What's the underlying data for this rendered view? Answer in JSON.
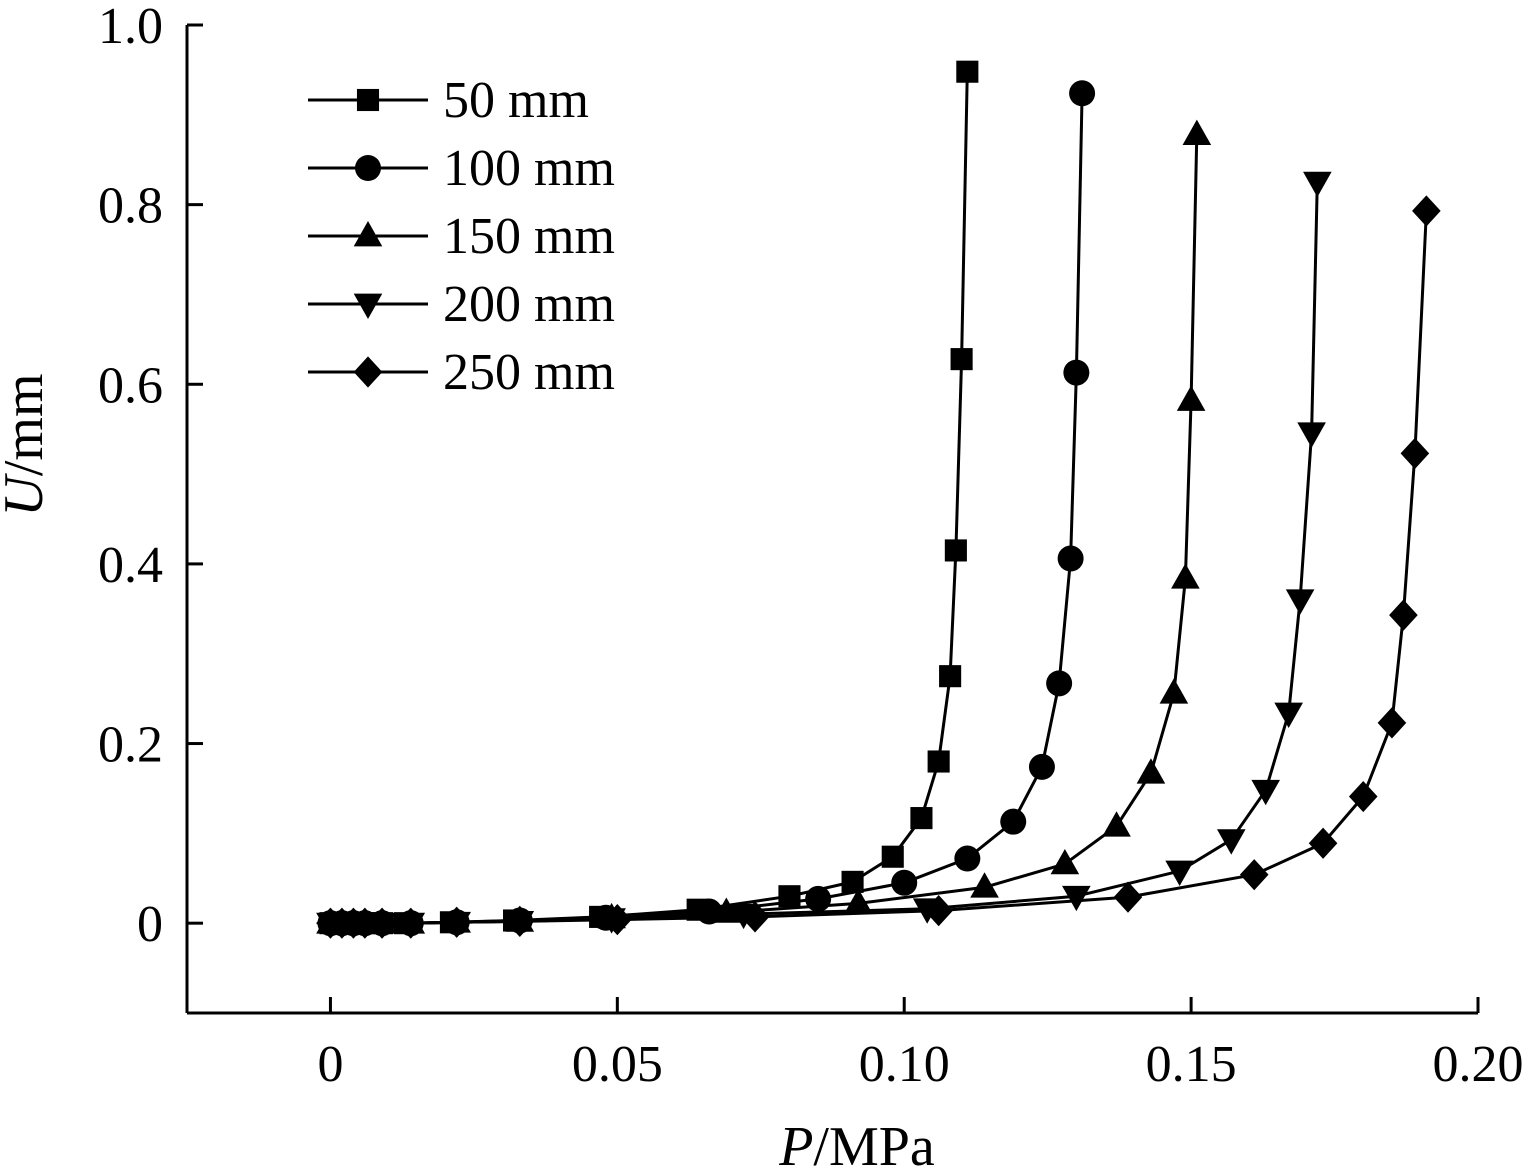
{
  "chart_data": {
    "type": "line",
    "title": "",
    "xlabel": {
      "var": "P",
      "unit": "/MPa"
    },
    "ylabel": {
      "var": "U",
      "unit": "/mm"
    },
    "xlim": [
      -0.025,
      0.2
    ],
    "ylim": [
      -0.1,
      1.0
    ],
    "x_ticks": [
      {
        "value": 0,
        "label": "0"
      },
      {
        "value": 0.05,
        "label": "0.05"
      },
      {
        "value": 0.1,
        "label": "0.10"
      },
      {
        "value": 0.15,
        "label": "0.15"
      },
      {
        "value": 0.2,
        "label": "0.20"
      }
    ],
    "y_ticks": [
      {
        "value": 0,
        "label": "0"
      },
      {
        "value": 0.2,
        "label": "0.2"
      },
      {
        "value": 0.4,
        "label": "0.4"
      },
      {
        "value": 0.6,
        "label": "0.6"
      },
      {
        "value": 0.8,
        "label": "0.8"
      },
      {
        "value": 1.0,
        "label": "1.0"
      }
    ],
    "grid": false,
    "legend_position": "top-left",
    "series": [
      {
        "name": "50 mm",
        "marker": "square",
        "color": "#000000",
        "points": [
          [
            0.0,
            0.0
          ],
          [
            0.002,
            0.0
          ],
          [
            0.004,
            0.0
          ],
          [
            0.006,
            0.0
          ],
          [
            0.009,
            0.0
          ],
          [
            0.013,
            0.0
          ],
          [
            0.021,
            0.001
          ],
          [
            0.032,
            0.003
          ],
          [
            0.047,
            0.007
          ],
          [
            0.064,
            0.015
          ],
          [
            0.08,
            0.03
          ],
          [
            0.091,
            0.046
          ],
          [
            0.098,
            0.074
          ],
          [
            0.103,
            0.117
          ],
          [
            0.106,
            0.18
          ],
          [
            0.108,
            0.275
          ],
          [
            0.109,
            0.415
          ],
          [
            0.11,
            0.628
          ],
          [
            0.111,
            0.948
          ]
        ]
      },
      {
        "name": "100 mm",
        "marker": "circle",
        "color": "#000000",
        "points": [
          [
            0.0,
            0.0
          ],
          [
            0.002,
            0.0
          ],
          [
            0.004,
            0.0
          ],
          [
            0.006,
            0.0
          ],
          [
            0.009,
            0.0
          ],
          [
            0.014,
            0.0
          ],
          [
            0.022,
            0.001
          ],
          [
            0.033,
            0.003
          ],
          [
            0.048,
            0.006
          ],
          [
            0.066,
            0.013
          ],
          [
            0.085,
            0.027
          ],
          [
            0.1,
            0.045
          ],
          [
            0.111,
            0.072
          ],
          [
            0.119,
            0.113
          ],
          [
            0.124,
            0.174
          ],
          [
            0.127,
            0.267
          ],
          [
            0.129,
            0.406
          ],
          [
            0.13,
            0.613
          ],
          [
            0.131,
            0.924
          ]
        ]
      },
      {
        "name": "150 mm",
        "marker": "triangle-up",
        "color": "#000000",
        "points": [
          [
            0.0,
            0.0
          ],
          [
            0.002,
            0.0
          ],
          [
            0.004,
            0.0
          ],
          [
            0.006,
            0.0
          ],
          [
            0.009,
            0.0
          ],
          [
            0.014,
            0.0
          ],
          [
            0.022,
            0.001
          ],
          [
            0.033,
            0.002
          ],
          [
            0.049,
            0.006
          ],
          [
            0.069,
            0.012
          ],
          [
            0.092,
            0.022
          ],
          [
            0.114,
            0.04
          ],
          [
            0.128,
            0.066
          ],
          [
            0.137,
            0.108
          ],
          [
            0.143,
            0.167
          ],
          [
            0.147,
            0.256
          ],
          [
            0.149,
            0.384
          ],
          [
            0.15,
            0.582
          ],
          [
            0.151,
            0.878
          ]
        ]
      },
      {
        "name": "200 mm",
        "marker": "triangle-down",
        "color": "#000000",
        "points": [
          [
            0.0,
            0.0
          ],
          [
            0.002,
            0.0
          ],
          [
            0.004,
            0.0
          ],
          [
            0.006,
            0.0
          ],
          [
            0.009,
            0.0
          ],
          [
            0.014,
            0.0
          ],
          [
            0.022,
            0.001
          ],
          [
            0.033,
            0.002
          ],
          [
            0.049,
            0.005
          ],
          [
            0.072,
            0.01
          ],
          [
            0.104,
            0.016
          ],
          [
            0.13,
            0.03
          ],
          [
            0.148,
            0.058
          ],
          [
            0.157,
            0.093
          ],
          [
            0.163,
            0.148
          ],
          [
            0.167,
            0.234
          ],
          [
            0.169,
            0.36
          ],
          [
            0.171,
            0.546
          ],
          [
            0.172,
            0.825
          ]
        ]
      },
      {
        "name": "250 mm",
        "marker": "diamond",
        "color": "#000000",
        "points": [
          [
            0.0,
            0.0
          ],
          [
            0.002,
            0.0
          ],
          [
            0.004,
            0.0
          ],
          [
            0.006,
            0.0
          ],
          [
            0.009,
            0.0
          ],
          [
            0.014,
            0.0
          ],
          [
            0.022,
            0.001
          ],
          [
            0.033,
            0.002
          ],
          [
            0.05,
            0.004
          ],
          [
            0.074,
            0.007
          ],
          [
            0.106,
            0.014
          ],
          [
            0.139,
            0.029
          ],
          [
            0.161,
            0.054
          ],
          [
            0.173,
            0.089
          ],
          [
            0.18,
            0.141
          ],
          [
            0.185,
            0.223
          ],
          [
            0.187,
            0.343
          ],
          [
            0.189,
            0.523
          ],
          [
            0.191,
            0.793
          ]
        ]
      }
    ]
  }
}
